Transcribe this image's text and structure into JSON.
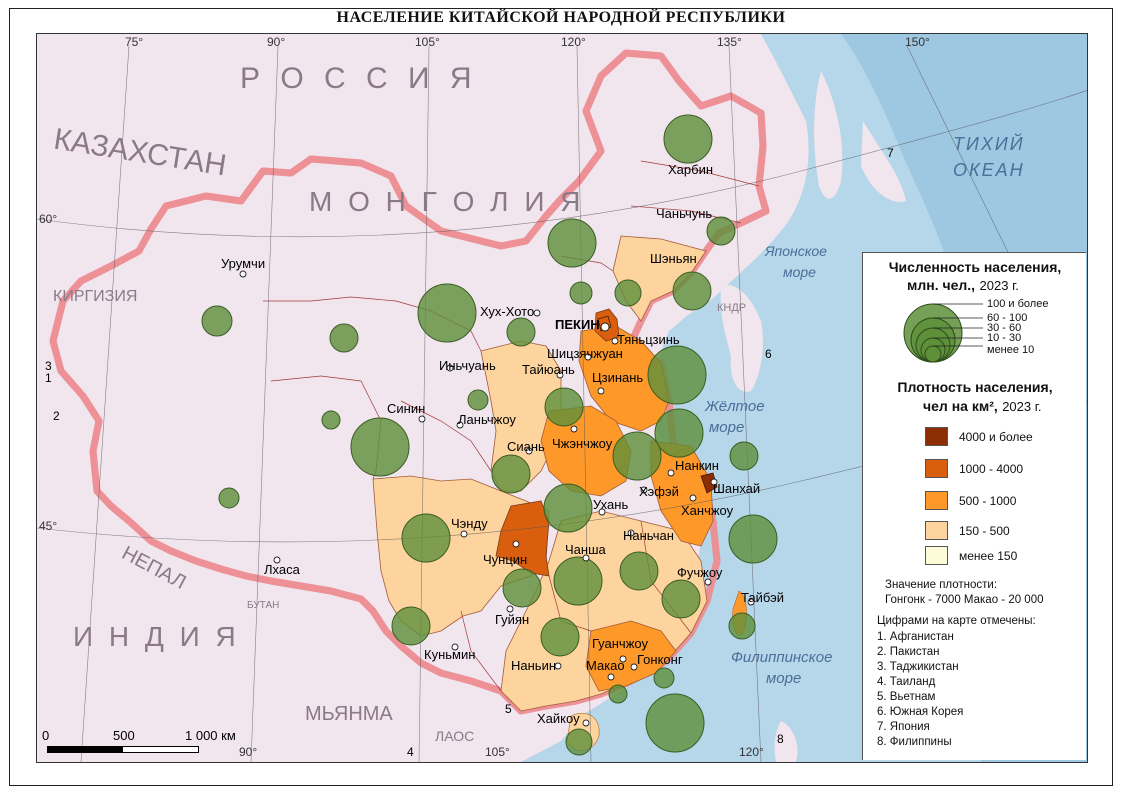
{
  "title": "НАСЕЛЕНИЕ КИТАЙСКОЙ НАРОДНОЙ РЕСПУБЛИКИ",
  "colors": {
    "sea": "#b6d6ea",
    "neighbor_land": "#f1e5ee",
    "border_glow": "#ec8f94",
    "density_4000_plus": "#8c2d04",
    "density_1000_4000": "#d95f0e",
    "density_500_1000": "#fe9929",
    "density_150_500": "#fdd49e",
    "density_under_150": "#fefbd8",
    "circle": "#5e8f3a"
  },
  "meridians": [
    "75°",
    "90°",
    "105°",
    "120°",
    "135°",
    "150°"
  ],
  "meridians_bottom": [
    "90°",
    "105°",
    "120°"
  ],
  "parallels": [
    "60°",
    "45°"
  ],
  "countries": {
    "russia": "Р О С С И Я",
    "mongolia": "М О Н Г О Л И Я",
    "kazakhstan": "КАЗАХСТАН",
    "india": "И Н Д И Я",
    "myanma": "МЬЯНМА",
    "kirgizia": "КИРГИЗИЯ",
    "nepal": "НЕПАЛ",
    "butan": "БУТАН",
    "laos": "ЛАОС",
    "kndr": "КНДР"
  },
  "seas": {
    "pacific_1": "ТИХИЙ",
    "pacific_2": "ОКЕАН",
    "japan_1": "Японское",
    "japan_2": "море",
    "yellow_1": "Жёлтое",
    "yellow_2": "море",
    "phil_1": "Филиппинское",
    "phil_2": "море"
  },
  "map_numbers": [
    "1",
    "2",
    "3",
    "4",
    "5",
    "6",
    "7",
    "8"
  ],
  "cities": {
    "beijing": "ПЕКИН",
    "tianjin": "Тяньцзинь",
    "shanghai": "Шанхай",
    "harbin": "Харбин",
    "changchun": "Чаньчунь",
    "shenyang": "Шэньян",
    "urumqi": "Урумчи",
    "huhhot": "Хух-Хото",
    "shijiazhuang": "Шицзячжуан",
    "taiyuan": "Тайюань",
    "jinan": "Цзинань",
    "yinchuan": "Иньчуань",
    "xining": "Синин",
    "lanzhou": "Ланьчжоу",
    "xian": "Сиань",
    "zhengzhou": "Чжэнчжоу",
    "nanjing": "Нанкин",
    "hefei": "Хэфэй",
    "wuhan": "Ухань",
    "hangzhou": "Ханчжоу",
    "chengdu": "Чэнду",
    "chongqing": "Чунцин",
    "changsha": "Чанша",
    "nanchang": "Наньчан",
    "fuzhou": "Фучжоу",
    "taibei": "Тайбэй",
    "lhasa": "Лхаса",
    "guiyang": "Гуйян",
    "kunming": "Куньмин",
    "nanning": "Наньин",
    "guangzhou": "Гуанчжоу",
    "macao": "Макао",
    "hongkong": "Гонконг",
    "haikou": "Хайкоу"
  },
  "scale": {
    "zero": "0",
    "mid": "500",
    "end": "1 000 км"
  },
  "legend": {
    "pop_title_1": "Численность населения,",
    "pop_title_2": "млн. чел.,",
    "pop_year": "2023 г.",
    "pop_classes": [
      "100 и более",
      "60 - 100",
      "30 - 60",
      "10 - 30",
      "менее 10"
    ],
    "dens_title_1": "Плотность населения,",
    "dens_title_2": "чел на км²,",
    "dens_year": "2023 г.",
    "dens_classes": [
      "4000 и более",
      "1000 - 4000",
      "500 - 1000",
      "150 - 500",
      "менее 150"
    ],
    "density_note_title": "Значение плотности:",
    "density_note": "Гонгонк - 7000  Макао - 20 000",
    "numbers_title": "Цифрами на карте отмечены:",
    "numbers": [
      "1. Афганистан",
      "2. Пакистан",
      "3. Таджикистан",
      "4. Таиланд",
      "5. Вьетнам",
      "6. Южная Корея",
      "7. Япония",
      "8. Филиппины"
    ]
  }
}
